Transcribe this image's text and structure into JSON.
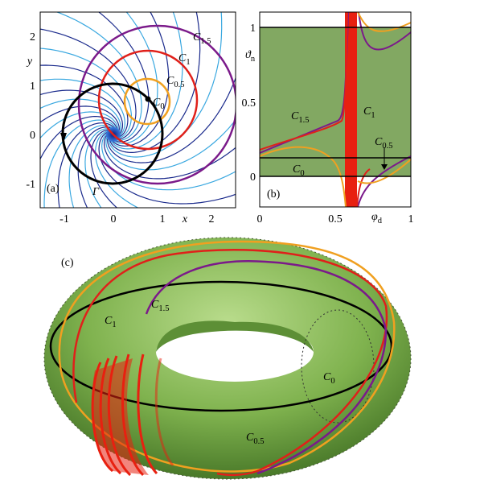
{
  "panels": [
    {
      "label": "(a)",
      "x_axis": {
        "label": "x",
        "ticks": [
          "-1",
          "0",
          "1",
          "2"
        ]
      },
      "y_axis": {
        "label": "y",
        "ticks": [
          "2",
          "1",
          "0",
          "-1"
        ]
      },
      "annotations": [
        {
          "symbol": "C",
          "subscript": "1.5"
        },
        {
          "symbol": "C",
          "subscript": "1"
        },
        {
          "symbol": "C",
          "subscript": "0.5"
        },
        {
          "symbol": "C",
          "subscript": "0"
        },
        {
          "symbol": "Γ"
        }
      ]
    },
    {
      "label": "(b)",
      "x_axis": {
        "symbol": "φ",
        "subscript": "d",
        "ticks": [
          "0",
          "0.5",
          "1"
        ]
      },
      "y_axis": {
        "symbol": "ϑ",
        "subscript": "n",
        "ticks": [
          "1",
          "0.5",
          "0"
        ]
      },
      "annotations": [
        {
          "symbol": "C",
          "subscript": "1.5"
        },
        {
          "symbol": "C",
          "subscript": "1"
        },
        {
          "symbol": "C",
          "subscript": "0.5"
        },
        {
          "symbol": "C",
          "subscript": "0"
        }
      ]
    },
    {
      "label": "(c)",
      "annotations": [
        {
          "symbol": "C",
          "subscript": "1"
        },
        {
          "symbol": "C",
          "subscript": "1.5"
        },
        {
          "symbol": "C",
          "subscript": "0"
        },
        {
          "symbol": "C",
          "subscript": "0.5"
        }
      ]
    }
  ]
}
